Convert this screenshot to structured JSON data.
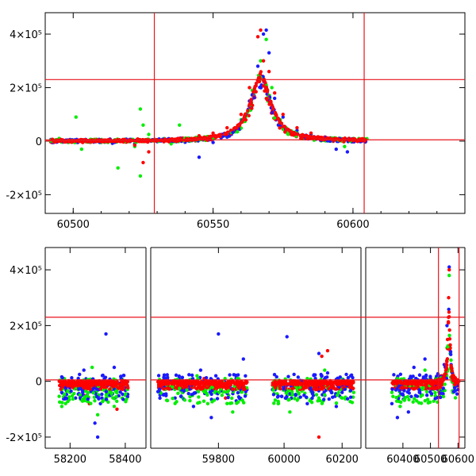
{
  "chart_data": [
    {
      "type": "scatter",
      "title": "",
      "xlabel": "",
      "ylabel": "",
      "xlim": [
        60490,
        60640
      ],
      "ylim": [
        -270000,
        480000
      ],
      "x_ticks": [
        "60500",
        "60550",
        "60600"
      ],
      "x_tick_values": [
        60500,
        60550,
        60600
      ],
      "y_ticks": [
        "4×10⁵",
        "2×10⁵",
        "0",
        "-2×10⁵"
      ],
      "y_tick_values": [
        400000,
        200000,
        0,
        -200000
      ],
      "vertical_lines": [
        60529,
        60604
      ],
      "horizontal_lines": [
        230000,
        5000
      ],
      "model_curve": "Lorentzian peak near 60567, amplitude about 2.3×10⁵",
      "series_colors": [
        "#1a1aff",
        "#00ee00",
        "#ff0000"
      ],
      "series": [
        {
          "color": "#1a1aff",
          "points": [
            [
              60493,
              -5000
            ],
            [
              60500,
              -3000
            ],
            [
              60508,
              -2000
            ],
            [
              60514,
              -8000
            ],
            [
              60522,
              -10000
            ],
            [
              60530,
              -2000
            ],
            [
              60540,
              -4000
            ],
            [
              60545,
              -60000
            ],
            [
              60550,
              -5000
            ],
            [
              60555,
              15000
            ],
            [
              60560,
              70000
            ],
            [
              60563,
              150000
            ],
            [
              60566,
              280000
            ],
            [
              60568,
              400000
            ],
            [
              60569,
              415000
            ],
            [
              60570,
              330000
            ],
            [
              60572,
              160000
            ],
            [
              60575,
              90000
            ],
            [
              60580,
              40000
            ],
            [
              60585,
              25000
            ],
            [
              60590,
              15000
            ],
            [
              60594,
              -30000
            ],
            [
              60598,
              -40000
            ],
            [
              60602,
              5000
            ]
          ]
        },
        {
          "color": "#00ee00",
          "points": [
            [
              60495,
              10000
            ],
            [
              60501,
              90000
            ],
            [
              60503,
              -30000
            ],
            [
              60510,
              -5000
            ],
            [
              60516,
              -100000
            ],
            [
              60522,
              -20000
            ],
            [
              60524,
              120000
            ],
            [
              60524,
              -130000
            ],
            [
              60525,
              60000
            ],
            [
              60527,
              25000
            ],
            [
              60535,
              -10000
            ],
            [
              60538,
              60000
            ],
            [
              60545,
              5000
            ],
            [
              60555,
              20000
            ],
            [
              60560,
              80000
            ],
            [
              60564,
              190000
            ],
            [
              60567,
              300000
            ],
            [
              60569,
              380000
            ],
            [
              60571,
              200000
            ],
            [
              60574,
              80000
            ],
            [
              60580,
              30000
            ],
            [
              60590,
              10000
            ],
            [
              60597,
              -20000
            ]
          ]
        },
        {
          "color": "#ff0000",
          "points": [
            [
              60492,
              -3000
            ],
            [
              60500,
              -1000
            ],
            [
              60510,
              -2000
            ],
            [
              60518,
              -3000
            ],
            [
              60522,
              -15000
            ],
            [
              60525,
              -80000
            ],
            [
              60527,
              -40000
            ],
            [
              60530,
              5000
            ],
            [
              60538,
              10000
            ],
            [
              60545,
              20000
            ],
            [
              60550,
              30000
            ],
            [
              60555,
              50000
            ],
            [
              60560,
              100000
            ],
            [
              60563,
              200000
            ],
            [
              60566,
              390000
            ],
            [
              60567,
              415000
            ],
            [
              60568,
              300000
            ],
            [
              60570,
              260000
            ],
            [
              60572,
              180000
            ],
            [
              60575,
              100000
            ],
            [
              60580,
              50000
            ],
            [
              60585,
              30000
            ],
            [
              60590,
              15000
            ],
            [
              60595,
              8000
            ],
            [
              60600,
              3000
            ],
            [
              60604,
              2000
            ]
          ]
        }
      ]
    },
    {
      "type": "scatter",
      "title": "",
      "xlabel": "",
      "ylabel": "",
      "broken_x_axis": true,
      "segments": [
        {
          "xlim": [
            58110,
            58475
          ],
          "x_ticks": [
            "58200",
            "58400"
          ],
          "x_tick_values": [
            58200,
            58400
          ]
        },
        {
          "xlim": [
            59610,
            59915
          ],
          "x_ticks": [
            "59800"
          ],
          "x_tick_values": [
            59800
          ]
        },
        {
          "xlim": [
            59915,
            60265
          ],
          "x_ticks": [
            "60000",
            "60200"
          ],
          "x_tick_values": [
            60000,
            60200
          ]
        },
        {
          "xlim": [
            60265,
            60625
          ],
          "x_ticks": [
            "60400",
            "60500",
            "60600"
          ],
          "x_tick_values": [
            60400,
            60500,
            60600
          ]
        }
      ],
      "ylim": [
        -240000,
        480000
      ],
      "y_ticks": [
        "4×10⁵",
        "2×10⁵",
        "0",
        "-2×10⁵"
      ],
      "y_tick_values": [
        400000,
        200000,
        0,
        -200000
      ],
      "vertical_lines": [
        60529,
        60604
      ],
      "horizontal_lines": [
        230000,
        5000
      ],
      "series_colors": [
        "#1a1aff",
        "#00ee00",
        "#ff0000"
      ],
      "series": [
        {
          "color": "#1a1aff",
          "points": [
            [
              58180,
              -20000
            ],
            [
              58220,
              -60000
            ],
            [
              58250,
              40000
            ],
            [
              58270,
              -10000
            ],
            [
              58290,
              -150000
            ],
            [
              58300,
              -200000
            ],
            [
              58310,
              -80000
            ],
            [
              58330,
              170000
            ],
            [
              58350,
              -30000
            ],
            [
              58360,
              50000
            ],
            [
              58380,
              -20000
            ],
            [
              59700,
              -40000
            ],
            [
              59730,
              -90000
            ],
            [
              59750,
              40000
            ],
            [
              59780,
              -130000
            ],
            [
              59800,
              170000
            ],
            [
              59820,
              -20000
            ],
            [
              59850,
              -70000
            ],
            [
              59870,
              80000
            ],
            [
              59880,
              -30000
            ],
            [
              59960,
              -30000
            ],
            [
              60010,
              160000
            ],
            [
              60040,
              -50000
            ],
            [
              60080,
              -80000
            ],
            [
              60120,
              100000
            ],
            [
              60150,
              30000
            ],
            [
              60180,
              -90000
            ],
            [
              60200,
              -40000
            ],
            [
              60230,
              20000
            ],
            [
              60360,
              -80000
            ],
            [
              60380,
              -130000
            ],
            [
              60400,
              -30000
            ],
            [
              60420,
              -110000
            ],
            [
              60440,
              50000
            ],
            [
              60460,
              -40000
            ],
            [
              60480,
              80000
            ],
            [
              60500,
              10000
            ],
            [
              60530,
              -10000
            ],
            [
              60550,
              60000
            ],
            [
              60560,
              200000
            ],
            [
              60568,
              410000
            ],
            [
              60575,
              60000
            ],
            [
              60600,
              -30000
            ]
          ]
        },
        {
          "color": "#00ee00",
          "points": [
            [
              58170,
              -90000
            ],
            [
              58200,
              -40000
            ],
            [
              58230,
              -30000
            ],
            [
              58260,
              -70000
            ],
            [
              58280,
              50000
            ],
            [
              58300,
              -120000
            ],
            [
              58330,
              -60000
            ],
            [
              58360,
              -90000
            ],
            [
              58400,
              -50000
            ],
            [
              59700,
              -60000
            ],
            [
              59740,
              20000
            ],
            [
              59770,
              -80000
            ],
            [
              59790,
              -40000
            ],
            [
              59810,
              -50000
            ],
            [
              59840,
              -110000
            ],
            [
              59870,
              -20000
            ],
            [
              59980,
              -80000
            ],
            [
              60020,
              -110000
            ],
            [
              60050,
              -60000
            ],
            [
              60080,
              10000
            ],
            [
              60100,
              -40000
            ],
            [
              60140,
              40000
            ],
            [
              60170,
              -20000
            ],
            [
              60200,
              -60000
            ],
            [
              60240,
              -40000
            ],
            [
              60360,
              -40000
            ],
            [
              60390,
              -90000
            ],
            [
              60420,
              -20000
            ],
            [
              60450,
              -70000
            ],
            [
              60480,
              40000
            ],
            [
              60510,
              -30000
            ],
            [
              60540,
              20000
            ],
            [
              60560,
              120000
            ],
            [
              60568,
              380000
            ],
            [
              60580,
              30000
            ]
          ]
        },
        {
          "color": "#ff0000",
          "points": [
            [
              58170,
              -10000
            ],
            [
              58200,
              -5000
            ],
            [
              58220,
              -10000
            ],
            [
              58250,
              -50000
            ],
            [
              58270,
              -80000
            ],
            [
              58300,
              -10000
            ],
            [
              58320,
              -20000
            ],
            [
              58350,
              -5000
            ],
            [
              58370,
              -100000
            ],
            [
              58400,
              -10000
            ],
            [
              59700,
              -5000
            ],
            [
              59720,
              -8000
            ],
            [
              59760,
              10000
            ],
            [
              59790,
              -12000
            ],
            [
              59820,
              -60000
            ],
            [
              59850,
              -5000
            ],
            [
              59880,
              -3000
            ],
            [
              59970,
              -5000
            ],
            [
              60000,
              -10000
            ],
            [
              60040,
              -15000
            ],
            [
              60080,
              -20000
            ],
            [
              60110,
              -30000
            ],
            [
              60130,
              90000
            ],
            [
              60150,
              110000
            ],
            [
              60170,
              -20000
            ],
            [
              60200,
              -10000
            ],
            [
              60230,
              -5000
            ],
            [
              60120,
              -200000
            ],
            [
              60380,
              -2000
            ],
            [
              60420,
              -5000
            ],
            [
              60460,
              -10000
            ],
            [
              60490,
              -5000
            ],
            [
              60520,
              5000
            ],
            [
              60540,
              20000
            ],
            [
              60555,
              60000
            ],
            [
              60562,
              150000
            ],
            [
              60566,
              300000
            ],
            [
              60568,
              400000
            ],
            [
              60572,
              120000
            ],
            [
              60580,
              30000
            ],
            [
              60590,
              5000
            ],
            [
              60603,
              0
            ]
          ]
        }
      ]
    }
  ]
}
